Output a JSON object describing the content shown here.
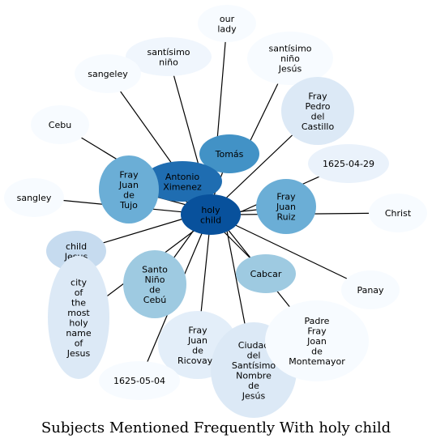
{
  "title": "Subjects Mentioned Frequently With holy child",
  "center": {
    "label": [
      "holy",
      "child"
    ],
    "color": "#08519c"
  },
  "nodes": [
    {
      "id": "our-lady",
      "label": [
        "our",
        "lady"
      ],
      "color": "#f7fbff"
    },
    {
      "id": "santisimo-nino",
      "label": [
        "santísimo",
        "niño"
      ],
      "color": "#f0f6fd"
    },
    {
      "id": "santisimo-nino-jesus",
      "label": [
        "santísimo",
        "niño",
        "Jesús"
      ],
      "color": "#f7fbff"
    },
    {
      "id": "sangeley-top",
      "label": [
        "sangeley"
      ],
      "color": "#f7fbff"
    },
    {
      "id": "fray-pedro-del-castillo",
      "label": [
        "Fray",
        "Pedro",
        "del",
        "Castillo"
      ],
      "color": "#dce9f6"
    },
    {
      "id": "cebu",
      "label": [
        "Cebu"
      ],
      "color": "#f7fbff"
    },
    {
      "id": "tomas",
      "label": [
        "Tomás"
      ],
      "color": "#4292c6"
    },
    {
      "id": "date-1625-04-29",
      "label": [
        "1625-04-29"
      ],
      "color": "#eaf2fb"
    },
    {
      "id": "antonio-ximenez",
      "label": [
        "Antonio",
        "Ximenez"
      ],
      "color": "#1f6db1"
    },
    {
      "id": "fray-juan-de-tujo",
      "label": [
        "Fray",
        "Juan",
        "de",
        "Tujo"
      ],
      "color": "#6baed6"
    },
    {
      "id": "sangley",
      "label": [
        "sangley"
      ],
      "color": "#f7fbff"
    },
    {
      "id": "fray-juan-ruiz",
      "label": [
        "Fray",
        "Juan",
        "Ruiz"
      ],
      "color": "#6baed6"
    },
    {
      "id": "christ",
      "label": [
        "Christ"
      ],
      "color": "#f7fbff"
    },
    {
      "id": "child-jesus",
      "label": [
        "child",
        "Jesus"
      ],
      "color": "#c6dbef"
    },
    {
      "id": "santo-nino-de-cebu",
      "label": [
        "Santo",
        "Niño",
        "de",
        "Cebú"
      ],
      "color": "#9ecae1"
    },
    {
      "id": "cabcar",
      "label": [
        "Cabcar"
      ],
      "color": "#9ecae1"
    },
    {
      "id": "panay",
      "label": [
        "Panay"
      ],
      "color": "#f7fbff"
    },
    {
      "id": "city-of-the-most-holy-name",
      "label": [
        "city",
        "of",
        "the",
        "most",
        "holy",
        "name",
        "of",
        "Jesus"
      ],
      "color": "#dce9f6"
    },
    {
      "id": "fray-juan-de-ricovayo",
      "label": [
        "Fray",
        "Juan",
        "de",
        "Ricovayo"
      ],
      "color": "#e3eef9"
    },
    {
      "id": "ciudad-del-santisimo",
      "label": [
        "Ciudad",
        "del",
        "Santísimo",
        "Nombre",
        "de",
        "Jesús"
      ],
      "color": "#dce9f6"
    },
    {
      "id": "padre-fray-joan-de-montemayor",
      "label": [
        "Padre",
        "Fray",
        "Joan",
        "de",
        "Montemayor"
      ],
      "color": "#f7fbff"
    },
    {
      "id": "date-1625-05-04",
      "label": [
        "1625-05-04"
      ],
      "color": "#f7fbff"
    }
  ]
}
